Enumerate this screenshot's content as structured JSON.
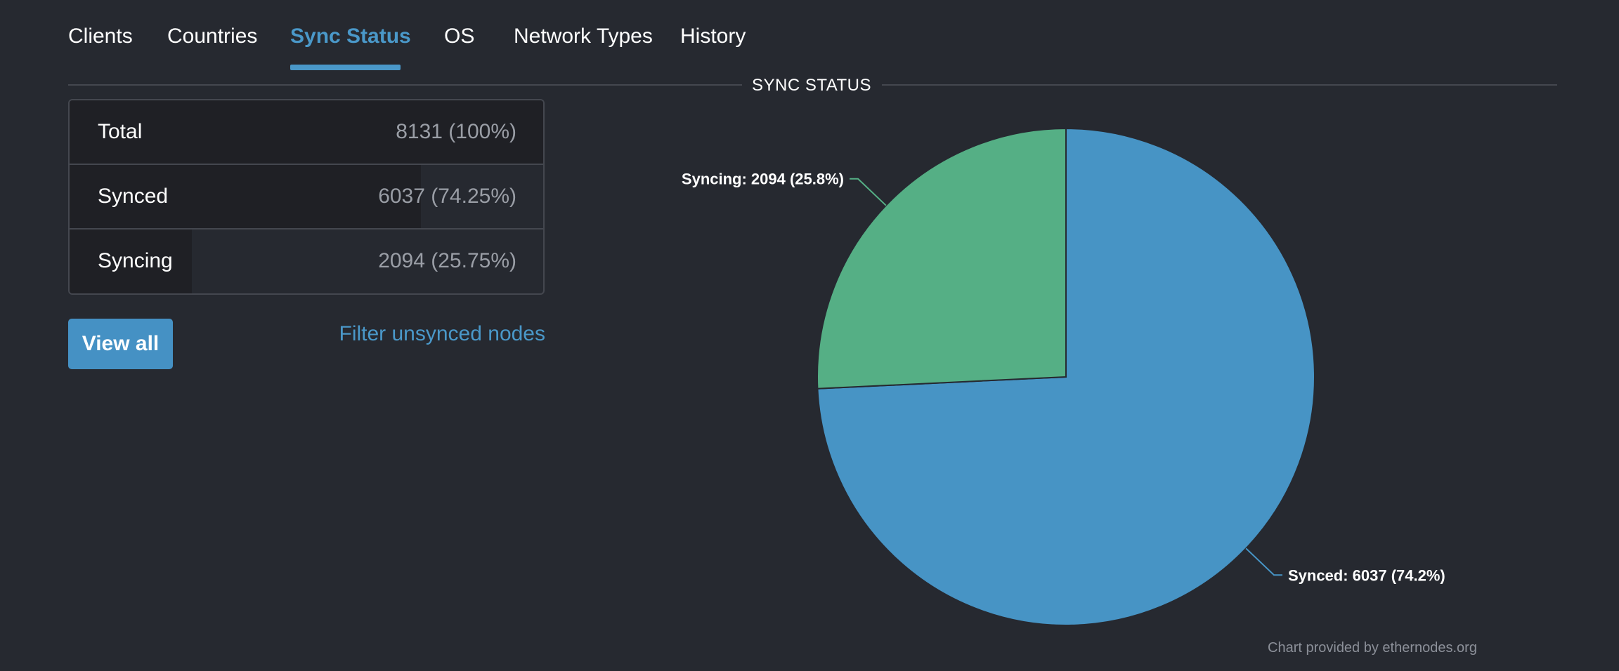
{
  "tabs": [
    {
      "label": "Clients",
      "active": false
    },
    {
      "label": "Countries",
      "active": false
    },
    {
      "label": "Sync Status",
      "active": true
    },
    {
      "label": "OS",
      "active": false
    },
    {
      "label": "Network Types",
      "active": false
    },
    {
      "label": "History",
      "active": false
    }
  ],
  "section_title": "SYNC STATUS",
  "stats": {
    "rows": [
      {
        "label": "Total",
        "value": "8131 (100%)",
        "fraction": 1.0
      },
      {
        "label": "Synced",
        "value": "6037 (74.25%)",
        "fraction": 0.7425
      },
      {
        "label": "Syncing",
        "value": "2094 (25.75%)",
        "fraction": 0.2575
      }
    ]
  },
  "buttons": {
    "view_all": "View all",
    "filter_unsynced": "Filter unsynced nodes"
  },
  "credit": "Chart provided by ethernodes.org",
  "colors": {
    "accent": "#4a98c9",
    "synced": "#4794c5",
    "syncing": "#55af85",
    "background": "#262930"
  },
  "chart_data": {
    "type": "pie",
    "title": "SYNC STATUS",
    "slices": [
      {
        "name": "Synced",
        "value": 6037,
        "label": "Synced: 6037 (74.2%)",
        "color": "#4794c5"
      },
      {
        "name": "Syncing",
        "value": 2094,
        "label": "Syncing: 2094 (25.8%)",
        "color": "#55af85"
      }
    ]
  }
}
